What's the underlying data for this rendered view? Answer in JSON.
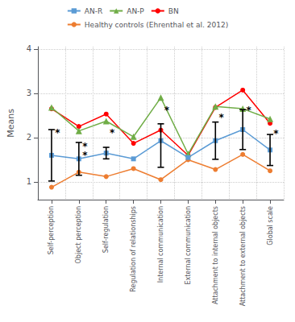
{
  "chart_data": {
    "type": "line",
    "categories": [
      "Self-perception",
      "Object perception",
      "Self-regulation",
      "Regulation of relationships",
      "Internal communication",
      "External communication",
      "Attachment to internal objects",
      "Attachment to external objects",
      "Global scale"
    ],
    "ylabel": "Means",
    "ylim": [
      0.6,
      4.05
    ],
    "yticks": [
      1,
      2,
      3,
      4
    ],
    "grid": true,
    "legend": "top",
    "series": [
      {
        "name": "AN-R",
        "color": "#5B9BD5",
        "marker": "square",
        "values": [
          1.6,
          1.52,
          1.65,
          1.52,
          1.93,
          1.55,
          1.93,
          2.18,
          1.72
        ],
        "error_low": [
          0.58,
          0.37,
          0.13,
          null,
          0.6,
          null,
          0.42,
          0.45,
          0.35
        ],
        "error_high": [
          0.58,
          0.37,
          0.13,
          null,
          0.38,
          null,
          0.42,
          0.45,
          0.35
        ]
      },
      {
        "name": "AN-P",
        "color": "#70AD47",
        "marker": "triangle",
        "values": [
          2.68,
          2.15,
          2.37,
          2.02,
          2.9,
          1.63,
          2.7,
          2.65,
          2.42
        ]
      },
      {
        "name": "BN",
        "color": "#FF0000",
        "marker": "circle",
        "values": [
          2.65,
          2.25,
          2.53,
          1.87,
          2.17,
          1.6,
          2.68,
          3.07,
          2.32
        ]
      },
      {
        "name": "Healthy controls (Ehrenthal et al. 2012)",
        "color": "#ED7D31",
        "marker": "circle",
        "values": [
          0.88,
          1.22,
          1.12,
          1.3,
          1.05,
          1.5,
          1.28,
          1.62,
          1.25
        ]
      }
    ],
    "annotations": [
      {
        "text": "*",
        "category": "Self-perception",
        "y": 2.1
      },
      {
        "text": "*",
        "category": "Object perception",
        "y": 1.8
      },
      {
        "text": "*",
        "category": "Object perception",
        "y": 1.6
      },
      {
        "text": "*",
        "category": "Self-regulation",
        "y": 2.1
      },
      {
        "text": "*",
        "category": "Internal communication",
        "y": 2.62
      },
      {
        "text": "*",
        "category": "Attachment to internal objects",
        "y": 2.45
      },
      {
        "text": "*",
        "category": "Attachment to external objects",
        "y": 2.62
      },
      {
        "text": "*",
        "category": "Global scale",
        "y": 2.08
      }
    ]
  }
}
